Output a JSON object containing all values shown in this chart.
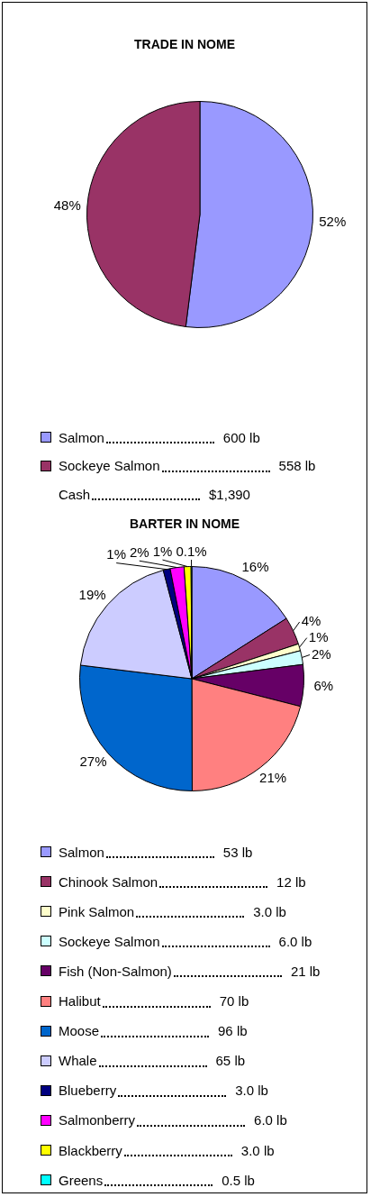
{
  "chart_data": [
    {
      "type": "pie",
      "title": "TRADE IN NOME",
      "categories": [
        "Salmon",
        "Sockeye Salmon"
      ],
      "values": [
        52,
        48
      ],
      "colors": [
        "#9999ff",
        "#993366"
      ],
      "value_labels": [
        "52%",
        "48%"
      ],
      "legend": "bottom",
      "annotations": [
        "600 lb",
        "558 lb",
        "Cash",
        "$1,390"
      ]
    },
    {
      "type": "pie",
      "title": "BARTER IN NOME",
      "categories": [
        "Salmon",
        "Chinook Salmon",
        "Pink Salmon",
        "Sockeye Salmon",
        "Fish (Non-Salmon)",
        "Halibut",
        "Moose",
        "Whale",
        "Blueberry",
        "Salmonberry",
        "Blackberry",
        "Greens"
      ],
      "values": [
        16,
        4,
        1,
        2,
        6,
        21,
        27,
        19,
        1,
        2,
        1,
        0.1
      ],
      "colors": [
        "#9999ff",
        "#993366",
        "#ffffcc",
        "#ccffff",
        "#660066",
        "#ff8080",
        "#0066cc",
        "#ccccff",
        "#000080",
        "#ff00ff",
        "#ffff00",
        "#00ffff"
      ],
      "value_labels": [
        "16%",
        "4%",
        "1%",
        "2%",
        "6%",
        "21%",
        "27%",
        "19%",
        "1%",
        "2%",
        "1%",
        "0.1%"
      ],
      "legend": "bottom",
      "annotations": [
        "53 lb",
        "12 lb",
        "3.0 lb",
        "6.0 lb",
        "21 lb",
        "70 lb",
        "96 lb",
        "65 lb",
        "3.0 lb",
        "6.0 lb",
        "3.0 lb",
        "0.5 lb"
      ]
    }
  ]
}
